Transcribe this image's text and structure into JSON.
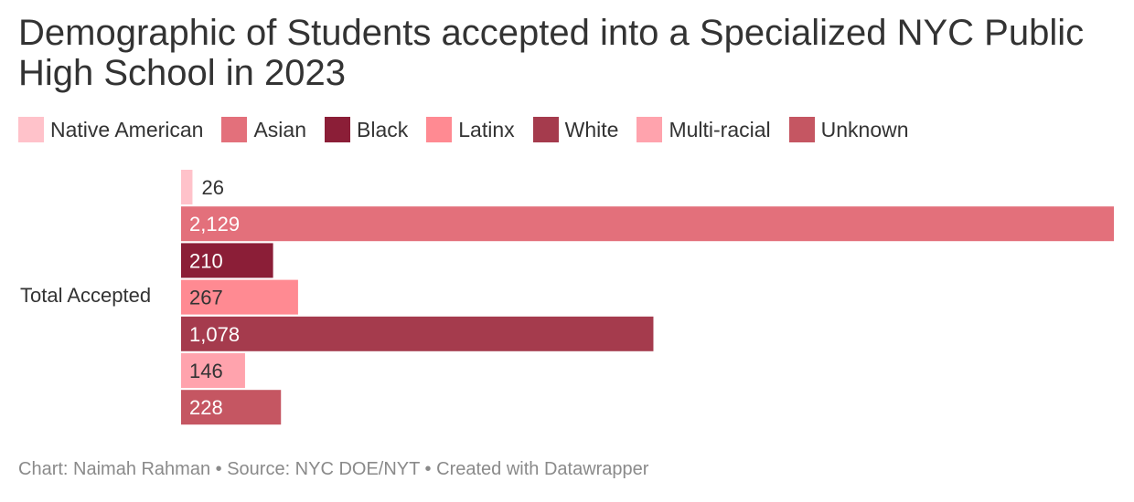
{
  "title": "Demographic of Students accepted into a Specialized NYC Public High School in 2023",
  "footer": "Chart: Naimah Rahman • Source: NYC DOE/NYT • Created with Datawrapper",
  "chart_data": {
    "type": "bar",
    "orientation": "horizontal",
    "title": "Demographic of Students accepted into a Specialized NYC Public High School in 2023",
    "categories": [
      "Total Accepted"
    ],
    "legend_placement": "top-left",
    "grid": false,
    "xlim": [
      0,
      2129
    ],
    "series": [
      {
        "name": "Native American",
        "value": 26,
        "label": "26",
        "color": "#ffc2ca"
      },
      {
        "name": "Asian",
        "value": 2129,
        "label": "2,129",
        "color": "#e3707b"
      },
      {
        "name": "Black",
        "value": 210,
        "label": "210",
        "color": "#8b1e37"
      },
      {
        "name": "Latinx",
        "value": 267,
        "label": "267",
        "color": "#ff8a92"
      },
      {
        "name": "White",
        "value": 1078,
        "label": "1,078",
        "color": "#a53b4d"
      },
      {
        "name": "Multi-racial",
        "value": 146,
        "label": "146",
        "color": "#ffa3ad"
      },
      {
        "name": "Unknown",
        "value": 228,
        "label": "228",
        "color": "#c55662"
      }
    ]
  }
}
